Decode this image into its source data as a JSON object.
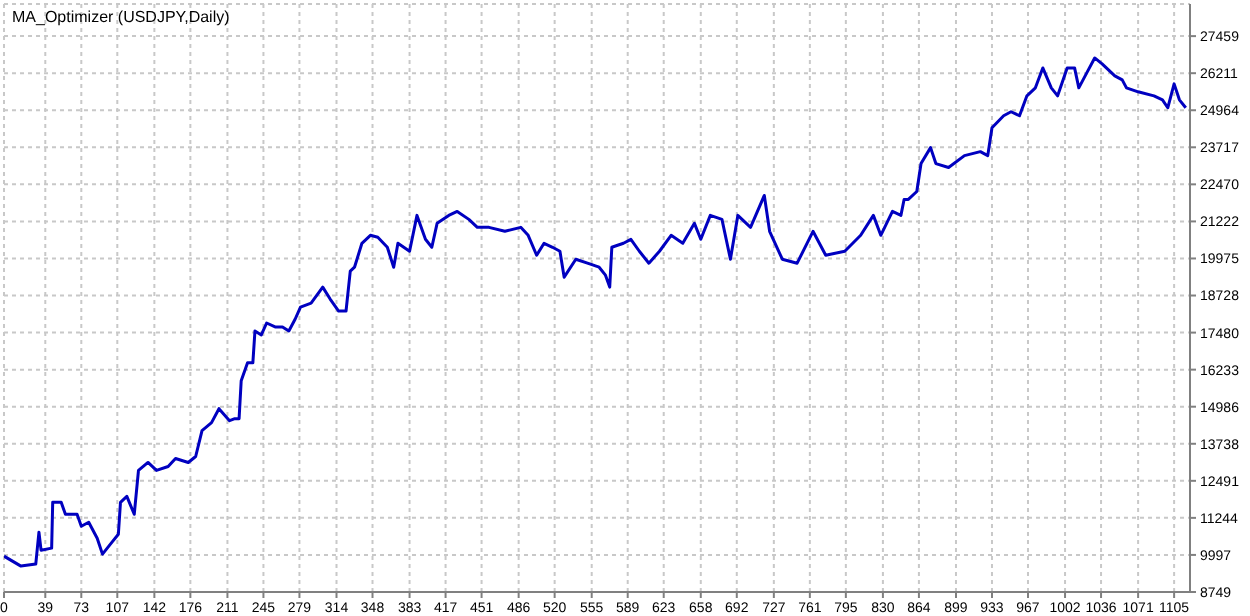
{
  "chart_data": {
    "type": "line",
    "title": "MA_Optimizer (USDJPY,Daily)",
    "x": [
      0,
      16,
      30,
      33,
      35,
      45,
      46,
      54,
      58,
      69,
      73,
      80,
      88,
      93,
      102,
      108,
      110,
      116,
      123,
      127,
      136,
      144,
      155,
      162,
      174,
      181,
      187,
      196,
      203,
      213,
      218,
      222,
      224,
      230,
      235,
      237,
      243,
      248,
      256,
      263,
      269,
      275,
      280,
      290,
      301,
      308,
      316,
      323,
      327,
      331,
      338,
      346,
      353,
      362,
      368,
      372,
      383,
      390,
      398,
      404,
      409,
      420,
      428,
      439,
      447,
      458,
      473,
      488,
      495,
      503,
      510,
      518,
      525,
      529,
      540,
      551,
      562,
      568,
      572,
      574,
      585,
      592,
      600,
      609,
      619,
      630,
      641,
      652,
      658,
      667,
      678,
      686,
      693,
      705,
      718,
      723,
      735,
      749,
      764,
      776,
      794,
      809,
      821,
      828,
      839,
      847,
      850,
      854,
      862,
      866,
      875,
      880,
      892,
      907,
      922,
      929,
      933,
      944,
      951,
      959,
      966,
      974,
      981,
      989,
      995,
      1004,
      1011,
      1015,
      1023,
      1030,
      1037,
      1049,
      1056,
      1060,
      1071,
      1086,
      1094,
      1099,
      1105,
      1110,
      1116
    ],
    "series": [
      {
        "color": "#0000c0",
        "values": [
          9956,
          9621,
          9688,
          10761,
          10157,
          10225,
          11767,
          11767,
          11365,
          11365,
          10962,
          11096,
          10560,
          10023,
          10426,
          10694,
          11767,
          11968,
          11365,
          12840,
          13109,
          12840,
          12974,
          13243,
          13109,
          13310,
          14182,
          14450,
          14919,
          14517,
          14584,
          14584,
          15858,
          16462,
          16462,
          17535,
          17401,
          17803,
          17669,
          17669,
          17535,
          17938,
          18340,
          18474,
          19011,
          18608,
          18206,
          18206,
          19547,
          19681,
          20486,
          20755,
          20687,
          20352,
          19681,
          20486,
          20218,
          21425,
          20620,
          20352,
          21157,
          21425,
          21559,
          21291,
          21023,
          21023,
          20889,
          21023,
          20755,
          20084,
          20486,
          20352,
          20218,
          19346,
          19950,
          19816,
          19681,
          19413,
          19011,
          20352,
          20486,
          20620,
          20218,
          19816,
          20218,
          20755,
          20486,
          21157,
          20620,
          21425,
          21291,
          19950,
          21425,
          21023,
          22096,
          20889,
          19950,
          19816,
          20889,
          20084,
          20218,
          20755,
          21425,
          20755,
          21559,
          21425,
          21962,
          21962,
          22230,
          23169,
          23706,
          23169,
          23035,
          23437,
          23571,
          23437,
          24376,
          24779,
          24913,
          24779,
          25449,
          25718,
          26388,
          25718,
          25449,
          26388,
          26388,
          25718,
          26254,
          26724,
          26523,
          26120,
          25986,
          25718,
          25584,
          25449,
          25315,
          25047,
          25852,
          25315,
          25047
        ]
      }
    ],
    "xlim": [
      0,
      1120
    ],
    "xticks": [
      0,
      39,
      73,
      107,
      142,
      176,
      211,
      245,
      279,
      314,
      348,
      383,
      417,
      451,
      486,
      520,
      555,
      589,
      623,
      658,
      692,
      727,
      761,
      795,
      830,
      864,
      899,
      933,
      967,
      1002,
      1036,
      1071,
      1105
    ],
    "ylim": [
      8749,
      28540
    ],
    "yticks": [
      8749,
      9997,
      11244,
      12491,
      13738,
      14986,
      16233,
      17480,
      18728,
      19975,
      21222,
      22470,
      23717,
      24964,
      26211,
      27459
    ],
    "grid": true,
    "legend": false,
    "marker": "none",
    "line_style": "solid"
  }
}
